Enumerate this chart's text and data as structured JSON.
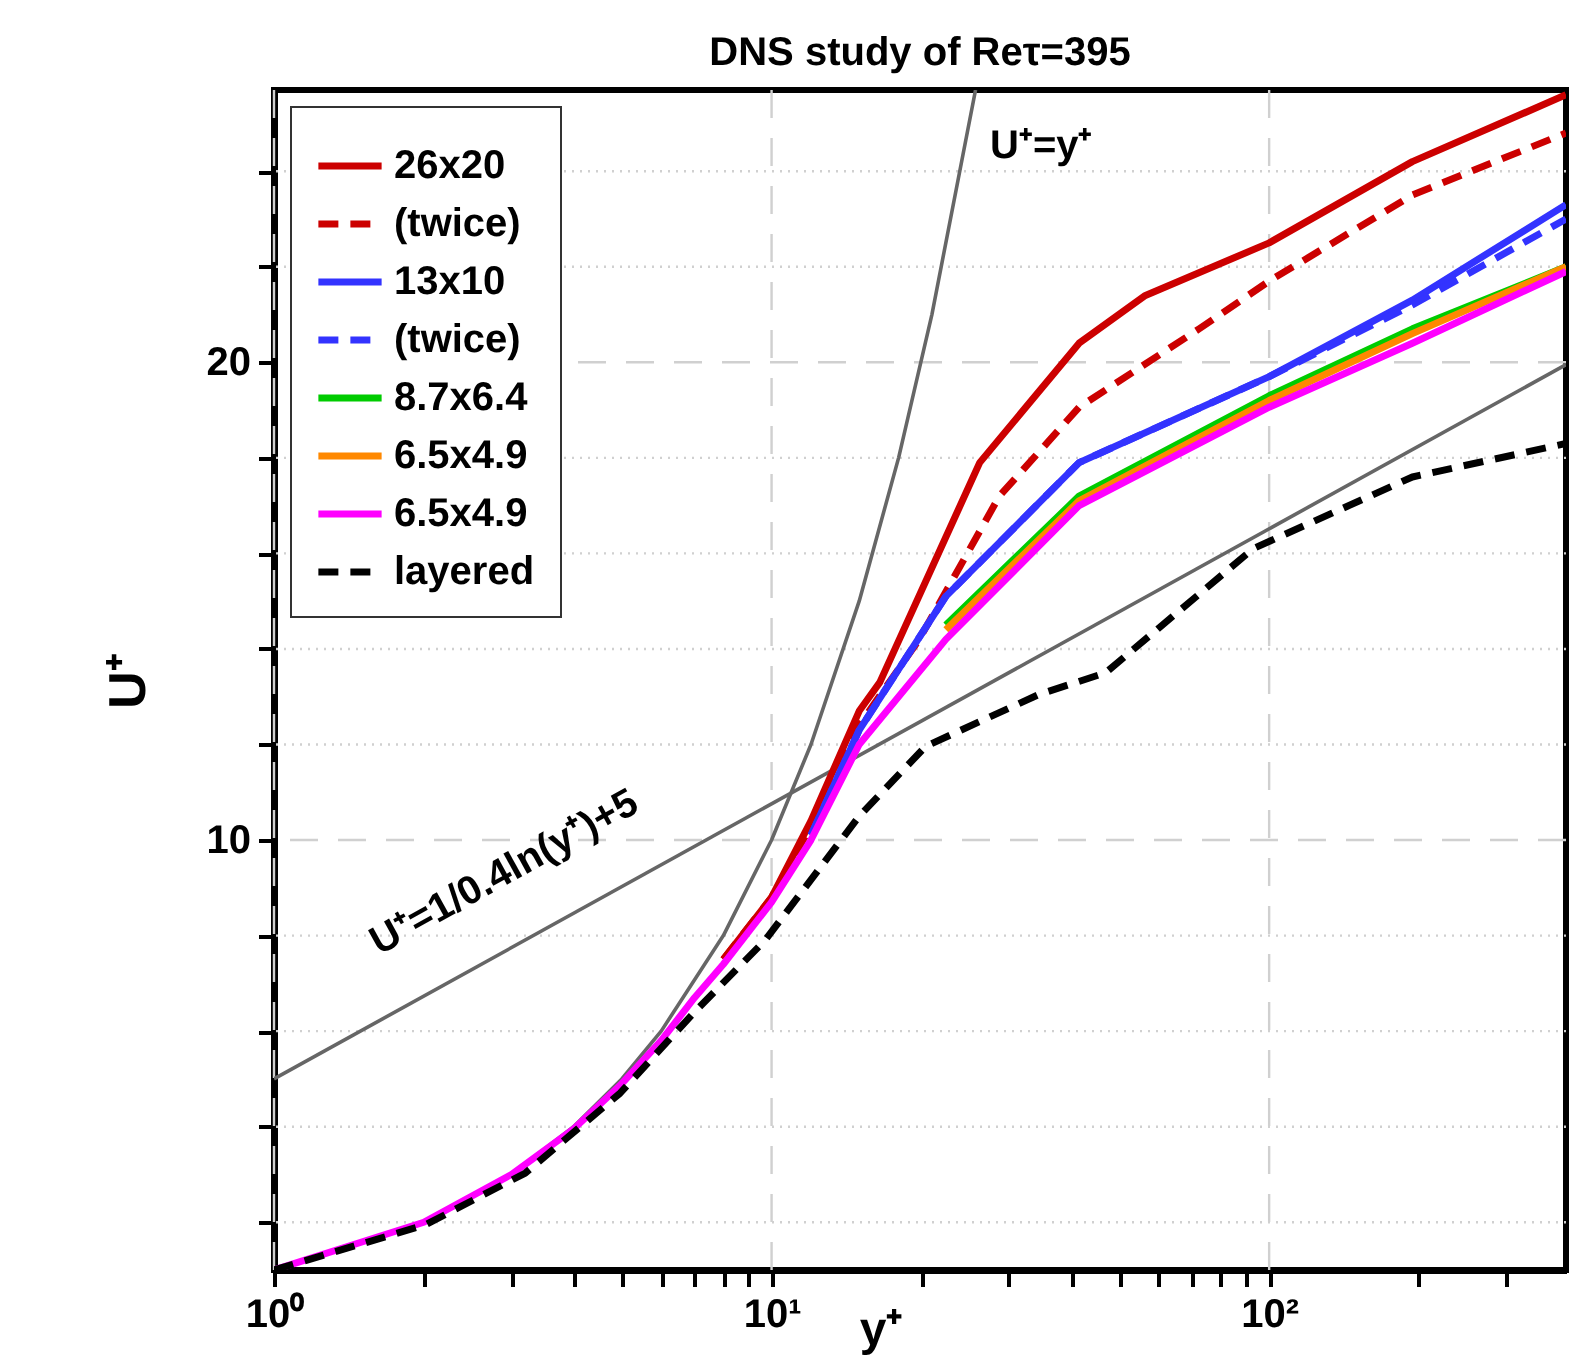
{
  "chart_data": {
    "type": "line",
    "title": "DNS study of Reτ=395",
    "xlabel": "y⁺",
    "ylabel": "U⁺",
    "log": "x",
    "xlim": [
      1,
      395
    ],
    "ylim": [
      1,
      25.7
    ],
    "xticks": [
      {
        "value": 1,
        "label": "10⁰"
      },
      {
        "value": 2,
        "label": null
      },
      {
        "value": 3,
        "label": null
      },
      {
        "value": 4,
        "label": null
      },
      {
        "value": 5,
        "label": null
      },
      {
        "value": 6,
        "label": null
      },
      {
        "value": 7,
        "label": null
      },
      {
        "value": 8,
        "label": null
      },
      {
        "value": 9,
        "label": null
      },
      {
        "value": 10,
        "label": "10¹"
      },
      {
        "value": 20,
        "label": null
      },
      {
        "value": 30,
        "label": null
      },
      {
        "value": 40,
        "label": null
      },
      {
        "value": 50,
        "label": null
      },
      {
        "value": 60,
        "label": null
      },
      {
        "value": 70,
        "label": null
      },
      {
        "value": 80,
        "label": null
      },
      {
        "value": 90,
        "label": null
      },
      {
        "value": 100,
        "label": "10²"
      },
      {
        "value": 200,
        "label": null
      },
      {
        "value": 300,
        "label": null
      }
    ],
    "yticks": [
      {
        "value": 2,
        "label": null
      },
      {
        "value": 4,
        "label": null
      },
      {
        "value": 6,
        "label": null
      },
      {
        "value": 8,
        "label": null
      },
      10,
      {
        "value": 12,
        "label": null
      },
      {
        "value": 14,
        "label": null
      },
      {
        "value": 16,
        "label": null
      },
      {
        "value": 18,
        "label": null
      },
      20,
      {
        "value": 22,
        "label": null
      },
      {
        "value": 24,
        "label": null
      }
    ],
    "grid": true,
    "legend": "top left",
    "annotations": [
      "U⁺=y⁺",
      "U⁺=1/0.4ln(y⁺)+5"
    ],
    "series": [
      {
        "name": "26x20",
        "color": "#cc0000",
        "line_style": "solid",
        "x": [
          8,
          10,
          12,
          15,
          16.5,
          26.2,
          41.5,
          56.4,
          100,
          194,
          395
        ],
        "values": [
          7.5,
          8.8,
          10.4,
          12.7,
          13.3,
          17.9,
          20.4,
          21.4,
          22.5,
          24.2,
          25.6
        ]
      },
      {
        "name": "(twice)",
        "color": "#cc0000",
        "line_style": "dashed",
        "x": [
          8,
          10,
          12,
          15,
          19.8,
          28.7,
          41.5,
          72.3,
          100,
          194,
          395
        ],
        "values": [
          7.5,
          8.8,
          10.3,
          12.4,
          14.2,
          17.2,
          19.06,
          20.7,
          21.7,
          23.5,
          24.8
        ]
      },
      {
        "name": "13x10",
        "color": "#3333ff",
        "line_style": "solid",
        "x": [
          12,
          15,
          22.4,
          41.5,
          100,
          194,
          395
        ],
        "values": [
          10.1,
          12.3,
          15.1,
          17.9,
          19.7,
          21.3,
          23.3
        ]
      },
      {
        "name": "(twice)",
        "color": "#3333ff",
        "line_style": "dashed",
        "x": [
          12,
          15,
          22.4,
          41.5,
          100,
          194,
          395
        ],
        "values": [
          10.1,
          12.3,
          15.1,
          17.9,
          19.7,
          21.2,
          23.0
        ]
      },
      {
        "name": "8.7x6.4",
        "color": "#00cc00",
        "line_style": "solid",
        "x": [
          22.4,
          41.5,
          100,
          194,
          395
        ],
        "values": [
          14.5,
          17.2,
          19.3,
          20.7,
          22.0
        ]
      },
      {
        "name": "6.5x4.9",
        "color": "#ff8800",
        "line_style": "solid",
        "x": [
          22.4,
          41.5,
          100,
          194,
          395
        ],
        "values": [
          14.4,
          17.1,
          19.2,
          20.6,
          22.0
        ]
      },
      {
        "name": "6.5x4.9",
        "color": "#ff00ff",
        "line_style": "solid",
        "x": [
          1,
          2,
          3,
          4,
          5,
          6,
          7,
          8,
          10,
          12,
          15,
          22.4,
          41.5,
          100,
          194,
          395
        ],
        "values": [
          1,
          2.0,
          3.0,
          3.95,
          4.9,
          5.8,
          6.7,
          7.4,
          8.7,
          10.0,
          12.0,
          14.2,
          17.0,
          19.06,
          20.4,
          21.9
        ]
      },
      {
        "name": "layered",
        "color": "#000000",
        "line_style": "dashed",
        "x": [
          1,
          2.02,
          3.2,
          4.96,
          7,
          9.7,
          15,
          20.4,
          34.5,
          46.9,
          92.9,
          194,
          395
        ],
        "values": [
          1,
          1.95,
          3.03,
          4.7,
          6.4,
          7.9,
          10.5,
          11.96,
          13.05,
          13.5,
          16.1,
          17.6,
          18.3
        ]
      },
      {
        "color": "#666666",
        "line_style": "solid",
        "x": [
          1,
          2,
          3,
          4,
          5,
          6,
          8,
          10,
          12,
          15,
          18,
          21,
          25.7
        ],
        "values": [
          1,
          2,
          3,
          4,
          5,
          6,
          8,
          10,
          12,
          15,
          18,
          21,
          25.7
        ]
      },
      {
        "color": "#666666",
        "line_style": "solid",
        "x": [
          1,
          395
        ],
        "values": [
          5,
          19.95
        ]
      }
    ]
  }
}
